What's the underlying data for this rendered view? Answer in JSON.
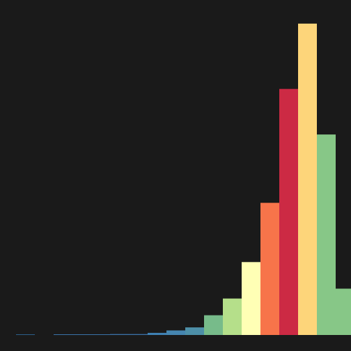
{
  "chart_data": {
    "type": "bar",
    "title": "",
    "xlabel": "",
    "ylabel": "",
    "grid": false,
    "legend": "none",
    "background_color": "#1a1a1a",
    "values": [
      0.3,
      0,
      0.3,
      0.3,
      0.3,
      0.6,
      0.6,
      1.4,
      3,
      5,
      13,
      24,
      48,
      87,
      162,
      205,
      132,
      30.5
    ],
    "colors": [
      "#2c5f8a",
      "#2c5f8a",
      "#3a72a8",
      "#3a72a8",
      "#3a72a8",
      "#3a72a8",
      "#3a72a8",
      "#3e80b3",
      "#4585b0",
      "#4d8fa8",
      "#77bb8a",
      "#b5df8a",
      "#ffffb5",
      "#f7744a",
      "#cc2a44",
      "#fdd57a",
      "#87c787",
      "#87c787"
    ],
    "ylim": [
      0,
      210
    ]
  }
}
